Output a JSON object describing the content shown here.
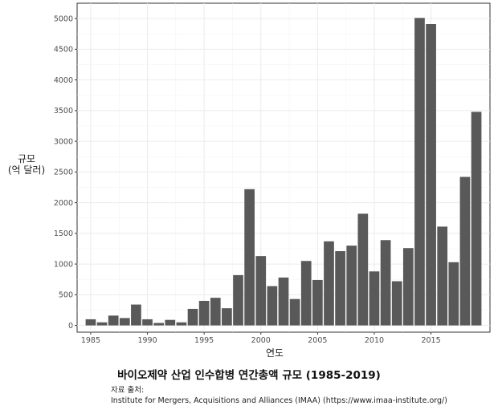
{
  "chart_data": {
    "type": "bar",
    "title": "바이오제약 산업 인수합병 연간총액 규모 (1985-2019)",
    "xlabel": "연도",
    "ylabel_line1": "규모",
    "ylabel_line2": "(억 달러)",
    "x": [
      1985,
      1986,
      1987,
      1988,
      1989,
      1990,
      1991,
      1992,
      1993,
      1994,
      1995,
      1996,
      1997,
      1998,
      1999,
      2000,
      2001,
      2002,
      2003,
      2004,
      2005,
      2006,
      2007,
      2008,
      2009,
      2010,
      2011,
      2012,
      2013,
      2014,
      2015,
      2016,
      2017,
      2018,
      2019
    ],
    "values": [
      100,
      50,
      160,
      120,
      340,
      100,
      40,
      90,
      50,
      270,
      400,
      450,
      280,
      820,
      2220,
      1130,
      640,
      780,
      430,
      1050,
      740,
      1370,
      1210,
      1300,
      1820,
      880,
      1390,
      720,
      1260,
      5010,
      4910,
      1610,
      1030,
      2420,
      3480
    ],
    "xlim": [
      1983.8,
      2020.2
    ],
    "ylim": [
      -110,
      5250
    ],
    "x_ticks": [
      1985,
      1990,
      1995,
      2000,
      2005,
      2010,
      2015
    ],
    "y_ticks": [
      0,
      500,
      1000,
      1500,
      2000,
      2500,
      3000,
      3500,
      4000,
      4500,
      5000
    ],
    "grid": true,
    "bar_color": "#595959"
  },
  "source": {
    "label": "자료 출처:",
    "text": "Institute for Mergers, Acquisitions and Alliances (IMAA) (https://www.imaa-institute.org/)"
  }
}
